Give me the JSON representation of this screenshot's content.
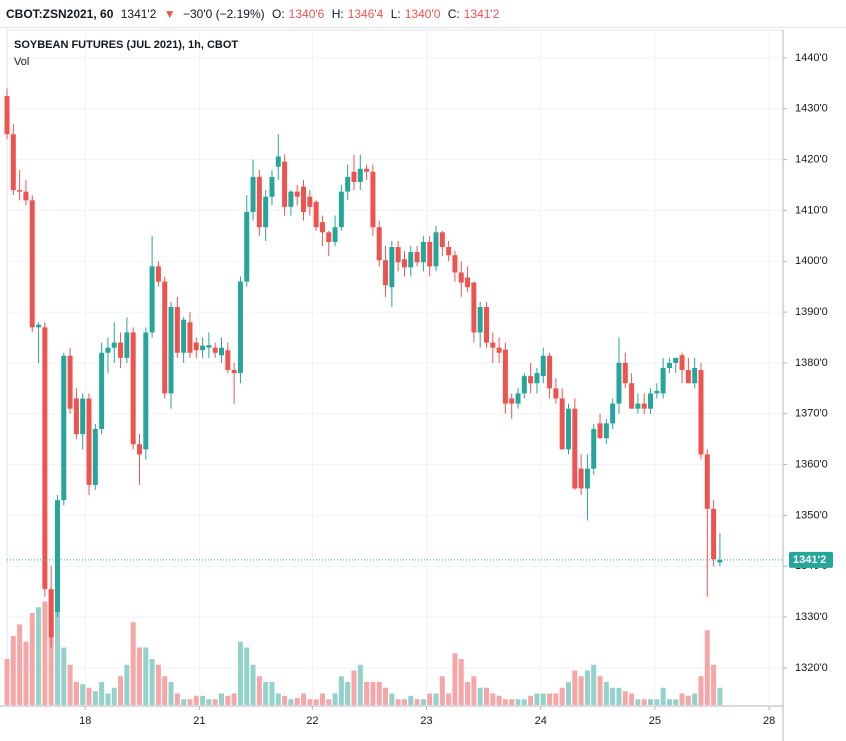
{
  "header": {
    "symbol": "CBOT:ZSN2021, 60",
    "price": "1341'2",
    "change": "−30'0 (−2.19%)",
    "open_label": "O:",
    "open": "1340'6",
    "high_label": "H:",
    "high": "1346'4",
    "low_label": "L:",
    "low": "1340'0",
    "close_label": "C:",
    "close": "1341'2"
  },
  "chart_data": {
    "type": "candlestick",
    "title": "SOYBEAN FUTURES (JUL 2021), 1h, CBOT",
    "subtitle": "Vol",
    "up_color": "#26a69a",
    "down_color": "#ef5350",
    "up_volume_color": "#92d2ca",
    "down_volume_color": "#f6a6a6",
    "grid": true,
    "x": [
      0,
      1,
      2,
      3,
      4,
      5,
      6,
      7,
      8,
      9,
      10,
      11,
      12,
      13,
      14,
      15,
      16,
      17,
      18,
      19,
      20,
      21,
      22,
      23,
      24,
      25,
      26,
      27,
      28,
      29,
      30,
      31,
      32,
      33,
      34,
      35,
      36,
      37,
      38,
      39,
      40,
      41,
      42,
      43,
      44,
      45,
      46,
      47,
      48,
      49,
      50,
      51,
      52,
      53,
      54,
      55,
      56,
      57,
      58,
      59,
      60,
      61,
      62,
      63,
      64,
      65,
      66,
      67,
      68,
      69,
      70,
      71,
      72,
      73,
      74,
      75,
      76,
      77,
      78,
      79,
      80,
      81,
      82,
      83,
      84,
      85,
      86,
      87,
      88,
      89,
      90,
      91,
      92,
      93,
      94,
      95,
      96,
      97,
      98,
      99,
      100,
      101,
      102,
      103,
      104,
      105,
      106,
      107,
      108,
      109,
      110,
      111,
      112,
      113
    ],
    "open": [
      1432.5,
      1425,
      1414,
      1413.7,
      1412,
      1387,
      1387,
      1335.5,
      1331,
      1353,
      1381.4,
      1373,
      1366,
      1373,
      1356,
      1367,
      1382,
      1383,
      1384,
      1381,
      1386,
      1364,
      1363,
      1386,
      1399,
      1396,
      1374,
      1391,
      1382,
      1388,
      1384,
      1382.5,
      1383,
      1383,
      1381.5,
      1382.5,
      1378.6,
      1378,
      1396,
      1409.7,
      1416.6,
      1406.7,
      1412.7,
      1418.6,
      1419.6,
      1410.7,
      1413.7,
      1414.7,
      1412.7,
      1411.7,
      1407.7,
      1405.7,
      1403.8,
      1406.7,
      1413.7,
      1417.6,
      1415.6,
      1418.2,
      1417.6,
      1406.7,
      1400.2,
      1394.9,
      1402.8,
      1400.4,
      1398.8,
      1401.8,
      1399.8,
      1403.8,
      1399,
      1405.7,
      1402.8,
      1401.2,
      1397.8,
      1396.8,
      1395.8,
      1386,
      1391,
      1384,
      1383,
      1382.6,
      1373,
      1372,
      1374,
      1377.4,
      1376,
      1377.4,
      1381.4,
      1375,
      1373,
      1363,
      1371,
      1359.2,
      1355.3,
      1359.2,
      1368.1,
      1365.2,
      1368.1,
      1372,
      1380,
      1376,
      1371,
      1372,
      1371,
      1374,
      1374,
      1379,
      1380,
      1381.5,
      1378.6,
      1376,
      1378.6,
      1362,
      1351.3,
      1340.75
    ],
    "high": [
      1434,
      1427,
      1418,
      1416,
      1413,
      1388,
      1388,
      1340,
      1354,
      1382,
      1383,
      1375,
      1374,
      1374,
      1368,
      1384,
      1385,
      1388,
      1386,
      1389,
      1387,
      1366,
      1387,
      1405,
      1400,
      1397,
      1392,
      1393,
      1389,
      1390,
      1385,
      1385,
      1386,
      1384,
      1385,
      1384,
      1380,
      1397,
      1413,
      1420,
      1418,
      1414,
      1418,
      1425,
      1421,
      1414,
      1415,
      1416,
      1414,
      1412,
      1409,
      1406,
      1409,
      1415,
      1419,
      1421,
      1421,
      1419,
      1419,
      1408,
      1403,
      1404,
      1404,
      1402,
      1403,
      1403,
      1405,
      1405,
      1407,
      1406,
      1404,
      1402,
      1400,
      1399,
      1396,
      1392,
      1392,
      1386,
      1385,
      1384,
      1374,
      1375,
      1378,
      1380,
      1379,
      1383,
      1382,
      1377,
      1375,
      1372,
      1373,
      1362,
      1362,
      1368,
      1370,
      1369,
      1373,
      1385,
      1382,
      1378,
      1374,
      1374,
      1375,
      1376,
      1381,
      1381,
      1381,
      1382,
      1381,
      1381,
      1380,
      1363,
      1353,
      1346.5
    ],
    "low": [
      1424,
      1413,
      1412,
      1411,
      1386,
      1380,
      1334,
      1324,
      1330,
      1352,
      1370,
      1365,
      1363,
      1354,
      1355,
      1366,
      1378,
      1380,
      1379,
      1380,
      1363,
      1356,
      1361,
      1385,
      1395,
      1373,
      1371,
      1381,
      1380,
      1381,
      1381,
      1381,
      1381,
      1381,
      1380,
      1378,
      1372,
      1376,
      1395,
      1408,
      1405,
      1404,
      1411,
      1416,
      1409,
      1409,
      1411,
      1408,
      1409,
      1406,
      1403,
      1401,
      1403,
      1406,
      1412,
      1414,
      1414,
      1416,
      1405,
      1399,
      1393,
      1391,
      1398,
      1397,
      1397,
      1399,
      1398,
      1397,
      1398,
      1401,
      1400,
      1396,
      1393,
      1394,
      1384,
      1383,
      1383,
      1380,
      1380,
      1370,
      1369,
      1371,
      1373,
      1374,
      1374,
      1376,
      1373,
      1372,
      1363,
      1362,
      1355,
      1354,
      1349,
      1358,
      1365,
      1364,
      1367,
      1370,
      1375,
      1371,
      1370,
      1370,
      1370,
      1373,
      1373,
      1378,
      1378,
      1376,
      1376,
      1375,
      1361,
      1334,
      1340,
      1340
    ],
    "close": [
      1425,
      1414,
      1413.7,
      1412,
      1387,
      1387.5,
      1335.5,
      1326,
      1353,
      1381.4,
      1371,
      1366,
      1373,
      1356,
      1367,
      1382,
      1383,
      1384,
      1381,
      1386,
      1364,
      1362,
      1386,
      1399,
      1396,
      1374,
      1391,
      1382,
      1388.5,
      1382,
      1382.5,
      1383.4,
      1383.5,
      1382,
      1383,
      1378.6,
      1378,
      1396,
      1409.7,
      1416.6,
      1406.7,
      1412.7,
      1416.6,
      1420.6,
      1410.7,
      1413.7,
      1412.7,
      1409.7,
      1410.7,
      1406.7,
      1405.7,
      1403.8,
      1406.7,
      1413.7,
      1416.6,
      1415.6,
      1418.2,
      1417.6,
      1406.7,
      1400.2,
      1395.3,
      1402.8,
      1399.8,
      1398.8,
      1401.8,
      1399.8,
      1403.8,
      1399,
      1405.7,
      1402.8,
      1401.2,
      1397.8,
      1395.8,
      1394.9,
      1386,
      1391,
      1384,
      1383,
      1382,
      1372,
      1372,
      1374,
      1377.4,
      1376,
      1378,
      1381.4,
      1375,
      1373,
      1363,
      1371,
      1355.3,
      1355.3,
      1359.2,
      1367,
      1365.2,
      1368.1,
      1372,
      1380,
      1376,
      1371,
      1372,
      1371,
      1374,
      1374.5,
      1379,
      1380,
      1381,
      1378.6,
      1376,
      1379,
      1362,
      1351.3,
      1341.4,
      1341.25
    ],
    "volume": [
      40,
      60,
      70,
      55,
      80,
      85,
      90,
      100,
      85,
      50,
      35,
      20,
      18,
      15,
      12,
      20,
      10,
      15,
      25,
      35,
      72,
      50,
      50,
      40,
      35,
      25,
      20,
      10,
      5,
      5,
      8,
      8,
      5,
      5,
      10,
      8,
      10,
      55,
      50,
      35,
      25,
      20,
      20,
      10,
      8,
      5,
      6,
      10,
      5,
      5,
      10,
      5,
      10,
      25,
      20,
      30,
      35,
      20,
      20,
      20,
      15,
      10,
      5,
      5,
      8,
      5,
      5,
      10,
      10,
      25,
      10,
      45,
      40,
      20,
      25,
      15,
      15,
      10,
      8,
      5,
      5,
      5,
      5,
      8,
      10,
      10,
      10,
      10,
      15,
      20,
      30,
      25,
      30,
      35,
      25,
      20,
      15,
      15,
      12,
      10,
      5,
      5,
      5,
      5,
      15,
      5,
      5,
      10,
      8,
      10,
      25,
      65,
      35,
      15
    ],
    "xlim": [
      0,
      123
    ],
    "xticks": [
      {
        "value": 12.4,
        "label": "18"
      },
      {
        "value": 30.5,
        "label": "21"
      },
      {
        "value": 48.4,
        "label": "22"
      },
      {
        "value": 66.5,
        "label": "23"
      },
      {
        "value": 84.6,
        "label": "24"
      },
      {
        "value": 102.7,
        "label": "25"
      },
      {
        "value": 120.8,
        "label": "28"
      }
    ],
    "ylim": [
      1312.5,
      1445.5
    ],
    "yticks": [
      {
        "value": 1320,
        "label": "1320'0"
      },
      {
        "value": 1330,
        "label": "1330'0"
      },
      {
        "value": 1340,
        "label": "1340'0"
      },
      {
        "value": 1350,
        "label": "1350'0"
      },
      {
        "value": 1360,
        "label": "1360'0"
      },
      {
        "value": 1370,
        "label": "1370'0"
      },
      {
        "value": 1380,
        "label": "1380'0"
      },
      {
        "value": 1390,
        "label": "1390'0"
      },
      {
        "value": 1400,
        "label": "1400'0"
      },
      {
        "value": 1410,
        "label": "1410'0"
      },
      {
        "value": 1420,
        "label": "1420'0"
      },
      {
        "value": 1430,
        "label": "1430'0"
      },
      {
        "value": 1440,
        "label": "1440'0"
      }
    ],
    "last_price": {
      "value": 1341.25,
      "label": "1341'2"
    }
  }
}
